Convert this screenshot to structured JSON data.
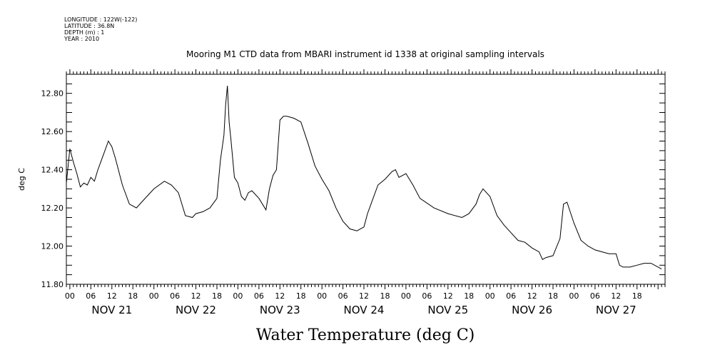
{
  "metadata": {
    "lines": [
      "LONGITUDE : 122W(-122)",
      "LATITUDE : 36.8N",
      "DEPTH (m) : 1",
      "YEAR : 2010"
    ]
  },
  "chart_data": {
    "type": "line",
    "title": "Mooring M1 CTD data from MBARI instrument id 1338 at original sampling intervals",
    "xlabel": "Water Temperature (deg C)",
    "ylabel": "deg C",
    "xlim": [
      "2010-11-20T23:00",
      "2010-11-28T02:00"
    ],
    "ylim": [
      11.8,
      12.9
    ],
    "y_ticks": [
      11.8,
      12.0,
      12.2,
      12.4,
      12.6,
      12.8
    ],
    "y_tick_labels": [
      "11.80",
      "12.00",
      "12.20",
      "12.40",
      "12.60",
      "12.80"
    ],
    "x_hour_tick_labels": [
      "00",
      "06",
      "12",
      "18",
      "00",
      "06",
      "12",
      "18",
      "00",
      "06",
      "12",
      "18",
      "00",
      "06",
      "12",
      "18",
      "00",
      "06",
      "12",
      "18",
      "00",
      "06",
      "12",
      "18",
      "00",
      "06",
      "12",
      "18"
    ],
    "x_day_labels": [
      "NOV 21",
      "NOV 22",
      "NOV 23",
      "NOV 24",
      "NOV 25",
      "NOV 26",
      "NOV 27"
    ],
    "grid": false,
    "color": "#000000",
    "series": [
      {
        "x": [
          "2010-11-20T23:00",
          "2010-11-21T00:00",
          "2010-11-21T01:00",
          "2010-11-21T02:00",
          "2010-11-21T03:00",
          "2010-11-21T04:00",
          "2010-11-21T05:00",
          "2010-11-21T06:00",
          "2010-11-21T07:00",
          "2010-11-21T08:00",
          "2010-11-21T09:00",
          "2010-11-21T10:00",
          "2010-11-21T11:00",
          "2010-11-21T12:00",
          "2010-11-21T13:00",
          "2010-11-21T15:00",
          "2010-11-21T17:00",
          "2010-11-21T19:00",
          "2010-11-21T21:00",
          "2010-11-22T00:00",
          "2010-11-22T03:00",
          "2010-11-22T05:00",
          "2010-11-22T07:00",
          "2010-11-22T09:00",
          "2010-11-22T11:00",
          "2010-11-22T12:00",
          "2010-11-22T14:00",
          "2010-11-22T16:00",
          "2010-11-22T18:00",
          "2010-11-22T19:00",
          "2010-11-22T20:00",
          "2010-11-22T20:30",
          "2010-11-22T21:00",
          "2010-11-22T21:30",
          "2010-11-22T22:00",
          "2010-11-22T23:00",
          "2010-11-23T00:00",
          "2010-11-23T01:00",
          "2010-11-23T02:00",
          "2010-11-23T03:00",
          "2010-11-23T04:00",
          "2010-11-23T06:00",
          "2010-11-23T08:00",
          "2010-11-23T09:00",
          "2010-11-23T10:00",
          "2010-11-23T11:00",
          "2010-11-23T12:00",
          "2010-11-23T13:00",
          "2010-11-23T14:00",
          "2010-11-23T16:00",
          "2010-11-23T18:00",
          "2010-11-23T20:00",
          "2010-11-23T22:00",
          "2010-11-24T00:00",
          "2010-11-24T02:00",
          "2010-11-24T04:00",
          "2010-11-24T06:00",
          "2010-11-24T08:00",
          "2010-11-24T10:00",
          "2010-11-24T12:00",
          "2010-11-24T13:00",
          "2010-11-24T14:00",
          "2010-11-24T16:00",
          "2010-11-24T18:00",
          "2010-11-24T20:00",
          "2010-11-24T21:00",
          "2010-11-24T22:00",
          "2010-11-25T00:00",
          "2010-11-25T02:00",
          "2010-11-25T04:00",
          "2010-11-25T08:00",
          "2010-11-25T12:00",
          "2010-11-25T16:00",
          "2010-11-25T18:00",
          "2010-11-25T20:00",
          "2010-11-25T21:00",
          "2010-11-25T22:00",
          "2010-11-26T00:00",
          "2010-11-26T02:00",
          "2010-11-26T04:00",
          "2010-11-26T06:00",
          "2010-11-26T08:00",
          "2010-11-26T10:00",
          "2010-11-26T12:00",
          "2010-11-26T14:00",
          "2010-11-26T15:00",
          "2010-11-26T16:00",
          "2010-11-26T18:00",
          "2010-11-26T20:00",
          "2010-11-26T21:00",
          "2010-11-26T22:00",
          "2010-11-27T00:00",
          "2010-11-27T02:00",
          "2010-11-27T04:00",
          "2010-11-27T06:00",
          "2010-11-27T08:00",
          "2010-11-27T10:00",
          "2010-11-27T12:00",
          "2010-11-27T13:00",
          "2010-11-27T14:00",
          "2010-11-27T16:00",
          "2010-11-27T18:00",
          "2010-11-27T20:00",
          "2010-11-27T22:00",
          "2010-11-28T00:00",
          "2010-11-28T01:00"
        ],
        "values": [
          12.33,
          12.51,
          12.44,
          12.38,
          12.31,
          12.33,
          12.32,
          12.36,
          12.34,
          12.4,
          12.45,
          12.5,
          12.55,
          12.52,
          12.46,
          12.32,
          12.22,
          12.2,
          12.24,
          12.3,
          12.34,
          12.32,
          12.28,
          12.16,
          12.15,
          12.17,
          12.18,
          12.2,
          12.25,
          12.45,
          12.58,
          12.74,
          12.84,
          12.65,
          12.56,
          12.36,
          12.33,
          12.26,
          12.24,
          12.28,
          12.29,
          12.25,
          12.19,
          12.3,
          12.37,
          12.4,
          12.66,
          12.68,
          12.68,
          12.67,
          12.65,
          12.54,
          12.42,
          12.35,
          12.29,
          12.2,
          12.13,
          12.09,
          12.08,
          12.1,
          12.17,
          12.22,
          12.32,
          12.35,
          12.39,
          12.4,
          12.36,
          12.38,
          12.32,
          12.25,
          12.2,
          12.17,
          12.15,
          12.17,
          12.22,
          12.27,
          12.3,
          12.26,
          12.16,
          12.11,
          12.07,
          12.03,
          12.02,
          11.99,
          11.97,
          11.93,
          11.94,
          11.95,
          12.04,
          12.22,
          12.23,
          12.12,
          12.03,
          12.0,
          11.98,
          11.97,
          11.96,
          11.96,
          11.9,
          11.89,
          11.89,
          11.9,
          11.91,
          11.91,
          11.89,
          11.88
        ]
      }
    ]
  }
}
